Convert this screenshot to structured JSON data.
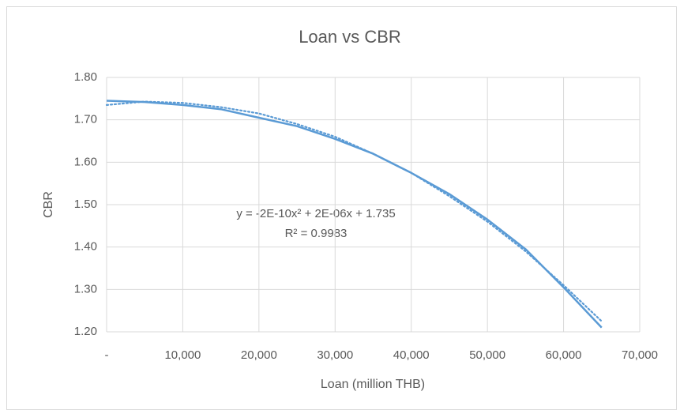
{
  "chart_data": {
    "type": "line",
    "title": "Loan vs CBR",
    "x_label": "Loan (million THB)",
    "y_label": "CBR",
    "x": [
      0,
      5000,
      10000,
      15000,
      20000,
      25000,
      30000,
      35000,
      40000,
      45000,
      50000,
      55000,
      60000,
      65000
    ],
    "series": [
      {
        "color": "#5b9bd5",
        "line_style": "solid",
        "values": [
          1.745,
          1.742,
          1.735,
          1.725,
          1.705,
          1.685,
          1.655,
          1.62,
          1.575,
          1.525,
          1.465,
          1.395,
          1.305,
          1.21
        ]
      },
      {
        "color": "#5b9bd5",
        "line_style": "dotted",
        "values": [
          1.735,
          1.743,
          1.74,
          1.73,
          1.715,
          1.69,
          1.66,
          1.62,
          1.575,
          1.52,
          1.46,
          1.39,
          1.31,
          1.225
        ]
      }
    ],
    "annotations": [
      "y = -2E-10x² + 2E-06x + 1.735",
      "R² = 0.9983"
    ],
    "xlim": [
      0,
      70000
    ],
    "xticks": [
      {
        "value": 0,
        "label": "-"
      },
      {
        "value": 10000,
        "label": "10,000"
      },
      {
        "value": 20000,
        "label": "20,000"
      },
      {
        "value": 30000,
        "label": "30,000"
      },
      {
        "value": 40000,
        "label": "40,000"
      },
      {
        "value": 50000,
        "label": "50,000"
      },
      {
        "value": 60000,
        "label": "60,000"
      },
      {
        "value": 70000,
        "label": "70,000"
      }
    ],
    "ylim": [
      1.2,
      1.8
    ],
    "yticks": [
      {
        "value": 1.2,
        "label": "1.20"
      },
      {
        "value": 1.3,
        "label": "1.30"
      },
      {
        "value": 1.4,
        "label": "1.40"
      },
      {
        "value": 1.5,
        "label": "1.50"
      },
      {
        "value": 1.6,
        "label": "1.60"
      },
      {
        "value": 1.7,
        "label": "1.70"
      },
      {
        "value": 1.8,
        "label": "1.80"
      }
    ],
    "grid": true
  }
}
